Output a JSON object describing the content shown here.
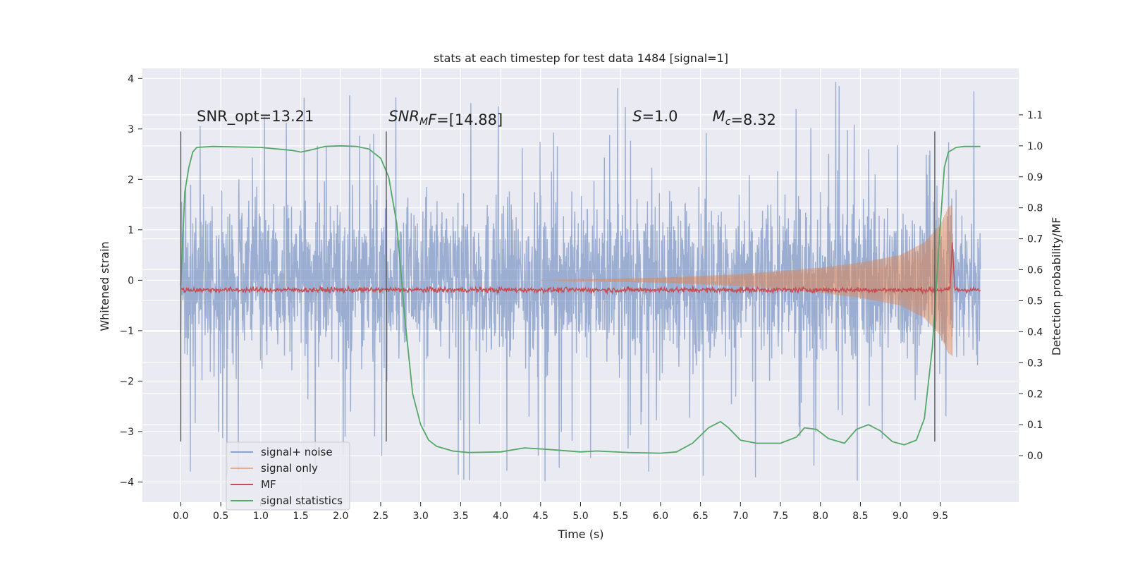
{
  "chart_data": {
    "type": "line",
    "title": "stats at each timestep for test data 1484 [signal=1]",
    "xlabel": "Time (s)",
    "ylabel": "Whitened strain",
    "y2label": "Detection probability/MF",
    "xlim": [
      -0.48,
      10.48
    ],
    "ylim": [
      -4.4,
      4.2
    ],
    "y2lim": [
      -0.15,
      1.25
    ],
    "xticks": [
      "0.0",
      "0.5",
      "1.0",
      "1.5",
      "2.0",
      "2.5",
      "3.0",
      "3.5",
      "4.0",
      "4.5",
      "5.0",
      "5.5",
      "6.0",
      "6.5",
      "7.0",
      "7.5",
      "8.0",
      "8.5",
      "9.0",
      "9.5"
    ],
    "yticks": [
      "4",
      "3",
      "2",
      "1",
      "0",
      "−1",
      "−2",
      "−3",
      "−4"
    ],
    "y2ticks": [
      "0.0",
      "0.1",
      "0.2",
      "0.3",
      "0.4",
      "0.5",
      "0.6",
      "0.7",
      "0.8",
      "0.9",
      "1.0",
      "1.1"
    ],
    "grid": true,
    "legend_position": "lower-left",
    "annotations": [
      {
        "text": "SNR_opt=13.21",
        "x": 0.2,
        "y": 3.15
      },
      {
        "text": "=[14.88]",
        "math_prefix": "SNR",
        "math_sub": "M",
        "math_tail": "F",
        "x": 2.6,
        "y": 3.15
      },
      {
        "text": "=1.0",
        "math_prefix": "S",
        "x": 5.65,
        "y": 3.15
      },
      {
        "text": "=8.32",
        "math_prefix": "M",
        "math_sub": "c",
        "x": 6.65,
        "y": 3.15
      }
    ],
    "vertical_markers": [
      0.0,
      2.57,
      9.43
    ],
    "marker_range": [
      -3.2,
      2.95
    ],
    "series": [
      {
        "name": "signal+ noise",
        "color": "#4c72b0",
        "axis": "left",
        "style": "noise",
        "x_range": [
          0.0,
          10.0
        ],
        "envelope": 1.75,
        "peak_max": 4.0,
        "peak_min": -4.0
      },
      {
        "name": "signal only",
        "color": "#dd8452",
        "axis": "left",
        "style": "chirp",
        "x_range": [
          4.5,
          9.65
        ],
        "amplitude_points": [
          [
            4.5,
            0.0
          ],
          [
            6.0,
            0.05
          ],
          [
            7.0,
            0.12
          ],
          [
            8.0,
            0.25
          ],
          [
            8.5,
            0.35
          ],
          [
            9.0,
            0.5
          ],
          [
            9.3,
            0.75
          ],
          [
            9.5,
            1.1
          ],
          [
            9.6,
            1.45
          ],
          [
            9.65,
            1.5
          ]
        ]
      },
      {
        "name": "MF",
        "color": "#c44e52",
        "axis": "right",
        "style": "jitter",
        "x_range": [
          0.0,
          10.0
        ],
        "baseline": 0.535,
        "peak": {
          "x": 9.65,
          "y": 0.69
        }
      },
      {
        "name": "signal statistics",
        "color": "#55a868",
        "axis": "right",
        "style": "smooth",
        "points": [
          [
            0.0,
            0.55
          ],
          [
            0.05,
            0.85
          ],
          [
            0.1,
            0.93
          ],
          [
            0.15,
            0.98
          ],
          [
            0.2,
            0.995
          ],
          [
            0.4,
            0.998
          ],
          [
            1.0,
            0.995
          ],
          [
            1.2,
            0.99
          ],
          [
            1.4,
            0.985
          ],
          [
            1.5,
            0.98
          ],
          [
            1.6,
            0.985
          ],
          [
            1.8,
            0.998
          ],
          [
            2.0,
            1.0
          ],
          [
            2.2,
            0.998
          ],
          [
            2.35,
            0.99
          ],
          [
            2.5,
            0.96
          ],
          [
            2.6,
            0.9
          ],
          [
            2.7,
            0.75
          ],
          [
            2.8,
            0.45
          ],
          [
            2.9,
            0.2
          ],
          [
            3.0,
            0.1
          ],
          [
            3.1,
            0.05
          ],
          [
            3.2,
            0.03
          ],
          [
            3.4,
            0.015
          ],
          [
            3.6,
            0.01
          ],
          [
            4.0,
            0.012
          ],
          [
            4.3,
            0.025
          ],
          [
            4.6,
            0.02
          ],
          [
            5.0,
            0.012
          ],
          [
            5.2,
            0.015
          ],
          [
            5.6,
            0.01
          ],
          [
            6.0,
            0.008
          ],
          [
            6.2,
            0.012
          ],
          [
            6.4,
            0.04
          ],
          [
            6.6,
            0.09
          ],
          [
            6.75,
            0.11
          ],
          [
            6.85,
            0.09
          ],
          [
            7.0,
            0.05
          ],
          [
            7.2,
            0.04
          ],
          [
            7.5,
            0.04
          ],
          [
            7.7,
            0.06
          ],
          [
            7.8,
            0.09
          ],
          [
            7.95,
            0.085
          ],
          [
            8.1,
            0.055
          ],
          [
            8.3,
            0.04
          ],
          [
            8.45,
            0.085
          ],
          [
            8.6,
            0.1
          ],
          [
            8.75,
            0.08
          ],
          [
            8.9,
            0.045
          ],
          [
            9.05,
            0.035
          ],
          [
            9.2,
            0.05
          ],
          [
            9.3,
            0.12
          ],
          [
            9.4,
            0.35
          ],
          [
            9.5,
            0.75
          ],
          [
            9.55,
            0.93
          ],
          [
            9.6,
            0.98
          ],
          [
            9.7,
            0.995
          ],
          [
            9.8,
            0.998
          ],
          [
            10.0,
            0.998
          ]
        ]
      }
    ]
  },
  "legend": {
    "items": [
      {
        "label": "signal+ noise",
        "color": "#4c72b0"
      },
      {
        "label": "signal only",
        "color": "#dd8452"
      },
      {
        "label": "MF",
        "color": "#c44e52"
      },
      {
        "label": "signal statistics",
        "color": "#55a868"
      }
    ]
  }
}
